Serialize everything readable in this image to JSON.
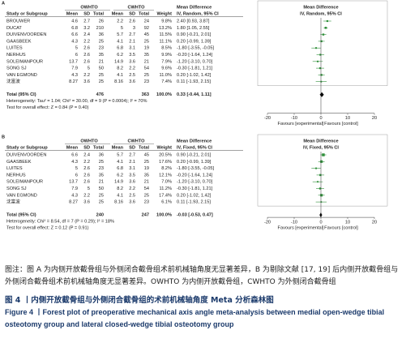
{
  "panels": [
    {
      "label": "A",
      "group_headers": [
        "OWHTO",
        "CWHTO",
        "Mean Difference",
        "Mean Difference"
      ],
      "column_headers": [
        "Study or Subgroup",
        "Mean",
        "SD",
        "Total",
        "Mean",
        "SD",
        "Total",
        "Weight",
        "IV, Random, 95% CI",
        "IV, Random, 95% CI"
      ],
      "rows": [
        {
          "study": "BROUWER",
          "cells": [
            4.6,
            2.7,
            26,
            2.2,
            2.6,
            24
          ],
          "weight": "9.8%",
          "ci_label": "2.40 [0.93, 3.87]",
          "md": 2.4,
          "lo": 0.93,
          "hi": 3.87
        },
        {
          "study": "DUCAT",
          "cells": [
            6.8,
            3.2,
            210,
            5,
            3,
            92
          ],
          "weight": "13.2%",
          "ci_label": "1.80 [1.05, 2.55]",
          "md": 1.8,
          "lo": 1.05,
          "hi": 2.55
        },
        {
          "study": "DUIVENVOORDEN",
          "cells": [
            6.6,
            2.4,
            36,
            5.7,
            2.7,
            45
          ],
          "weight": "11.5%",
          "ci_label": "0.90 [-0.21, 2.01]",
          "md": 0.9,
          "lo": -0.21,
          "hi": 2.01
        },
        {
          "study": "GAASBEEK",
          "cells": [
            4.3,
            2.2,
            25,
            4.1,
            2.1,
            25
          ],
          "weight": "11.1%",
          "ci_label": "0.20 [-0.99, 1.39]",
          "md": 0.2,
          "lo": -0.99,
          "hi": 1.39
        },
        {
          "study": "LUITES",
          "cells": [
            5,
            2.6,
            23,
            6.8,
            3.1,
            19
          ],
          "weight": "8.5%",
          "ci_label": "-1.80 [-3.55, -0.05]",
          "md": -1.8,
          "lo": -3.55,
          "hi": -0.05
        },
        {
          "study": "NERHUS",
          "cells": [
            6,
            2.6,
            35,
            6.2,
            3.5,
            35
          ],
          "weight": "9.9%",
          "ci_label": "-0.20 [-1.64, 1.24]",
          "md": -0.2,
          "lo": -1.64,
          "hi": 1.24
        },
        {
          "study": "SOLEIMANPOUR",
          "cells": [
            13.7,
            2.6,
            21,
            14.9,
            3.6,
            21
          ],
          "weight": "7.9%",
          "ci_label": "-1.20 [-3.10, 0.70]",
          "md": -1.2,
          "lo": -3.1,
          "hi": 0.7
        },
        {
          "study": "SONG SJ",
          "cells": [
            7.9,
            5,
            50,
            8.2,
            2.2,
            54
          ],
          "weight": "9.6%",
          "ci_label": "-0.30 [-1.81, 1.21]",
          "md": -0.3,
          "lo": -1.81,
          "hi": 1.21
        },
        {
          "study": "VAN EGMOND",
          "cells": [
            4.3,
            2.2,
            25,
            4.1,
            2.5,
            25
          ],
          "weight": "11.0%",
          "ci_label": "0.20 [-1.02, 1.42]",
          "md": 0.2,
          "lo": -1.02,
          "hi": 1.42
        },
        {
          "study": "沈富波",
          "cells": [
            8.27,
            3.6,
            25,
            8.16,
            3.6,
            23
          ],
          "weight": "7.4%",
          "ci_label": "0.11 [-1.93, 2.15]",
          "md": 0.11,
          "lo": -1.93,
          "hi": 2.15
        }
      ],
      "total": {
        "study": "Total (95% CI)",
        "total1": 476,
        "total2": 363,
        "weight": "100.0%",
        "ci_label": "0.33 [-0.44, 1.11]",
        "md": 0.33,
        "lo": -0.44,
        "hi": 1.11
      },
      "heterogeneity": "Heterogeneity: Tau² = 1.04; Chi² = 30.00, df = 9 (P = 0.0004); I² = 70%",
      "overall_effect": "Test for overall effect: Z = 0.84 (P = 0.40)",
      "xlim": [
        -20,
        20
      ],
      "xticks": [
        -20,
        -10,
        0,
        10,
        20
      ],
      "favours_left": "Favours [experimental]",
      "favours_right": "Favours [control]"
    },
    {
      "label": "B",
      "group_headers": [
        "OWHTO",
        "CWHTO",
        "Mean Difference",
        "Mean Difference"
      ],
      "column_headers": [
        "Study or Subgroup",
        "Mean",
        "SD",
        "Total",
        "Mean",
        "SD",
        "Total",
        "Weight",
        "IV, Fixed, 95% CI",
        "IV, Fixed, 95% CI"
      ],
      "rows": [
        {
          "study": "DUIVENVOORDEN",
          "cells": [
            6.6,
            2.4,
            36,
            5.7,
            2.7,
            45
          ],
          "weight": "20.5%",
          "ci_label": "0.90 [-0.21, 2.01]",
          "md": 0.9,
          "lo": -0.21,
          "hi": 2.01
        },
        {
          "study": "GAASBEEK",
          "cells": [
            4.3,
            2.2,
            25,
            4.1,
            2.1,
            25
          ],
          "weight": "17.6%",
          "ci_label": "0.20 [-0.99, 1.39]",
          "md": 0.2,
          "lo": -0.99,
          "hi": 1.39
        },
        {
          "study": "LUITES",
          "cells": [
            5,
            2.6,
            23,
            6.8,
            3.1,
            19
          ],
          "weight": "8.2%",
          "ci_label": "-1.80 [-3.55, -0.05]",
          "md": -1.8,
          "lo": -3.55,
          "hi": -0.05
        },
        {
          "study": "NERHUS",
          "cells": [
            6,
            2.6,
            35,
            6.2,
            3.5,
            35
          ],
          "weight": "12.1%",
          "ci_label": "-0.20 [-1.64, 1.24]",
          "md": -0.2,
          "lo": -1.64,
          "hi": 1.24
        },
        {
          "study": "SOLEIMANPOUR",
          "cells": [
            13.7,
            2.6,
            21,
            14.9,
            3.6,
            21
          ],
          "weight": "7.0%",
          "ci_label": "-1.20 [-3.10, 0.70]",
          "md": -1.2,
          "lo": -3.1,
          "hi": 0.7
        },
        {
          "study": "SONG SJ",
          "cells": [
            7.9,
            5,
            50,
            8.2,
            2.2,
            54
          ],
          "weight": "11.2%",
          "ci_label": "-0.30 [-1.81, 1.21]",
          "md": -0.3,
          "lo": -1.81,
          "hi": 1.21
        },
        {
          "study": "VAN EGMOND",
          "cells": [
            4.3,
            2.2,
            25,
            4.1,
            2.5,
            25
          ],
          "weight": "17.4%",
          "ci_label": "0.20 [-1.02, 1.42]",
          "md": 0.2,
          "lo": -1.02,
          "hi": 1.42
        },
        {
          "study": "沈富波",
          "cells": [
            8.27,
            3.6,
            25,
            8.16,
            3.6,
            23
          ],
          "weight": "6.1%",
          "ci_label": "0.11 [-1.93, 2.15]",
          "md": 0.11,
          "lo": -1.93,
          "hi": 2.15
        }
      ],
      "total": {
        "study": "Total (95% CI)",
        "total1": 240,
        "total2": 247,
        "weight": "100.0%",
        "ci_label": "-0.03 [-0.53, 0.47]",
        "md": -0.03,
        "lo": -0.53,
        "hi": 0.47
      },
      "heterogeneity": "Heterogeneity: Chi² = 8.54, df = 7 (P = 0.29); I² = 18%",
      "overall_effect": "Test for overall effect: Z = 0.12 (P = 0.91)",
      "xlim": [
        -20,
        20
      ],
      "xticks": [
        -20,
        -10,
        0,
        10,
        20
      ],
      "favours_left": "Favours [experimental]",
      "favours_right": "Favours [control]"
    }
  ],
  "caption": {
    "note": "图注：图 A 为内侧开放截骨组与外侧闭合截骨组术前机械轴角度无显著差异，B 为剔除文献 [17, 19] 后内侧开放截骨组与外侧闭合截骨组术前机械轴角度无显著差异。OWHTO 为内侧开放截骨组，CWHTO 为外侧闭合截骨组",
    "title_cn": "图 4 丨内侧开放截骨组与外侧闭合截骨组的术前机械轴角度 Meta 分析森林图",
    "title_en": "Figure 4 丨Forest plot of preoperative mechanical axis angle meta-analysis between medial open-wedge tibial osteotomy group and lateral closed-wedge tibial osteotomy group"
  }
}
